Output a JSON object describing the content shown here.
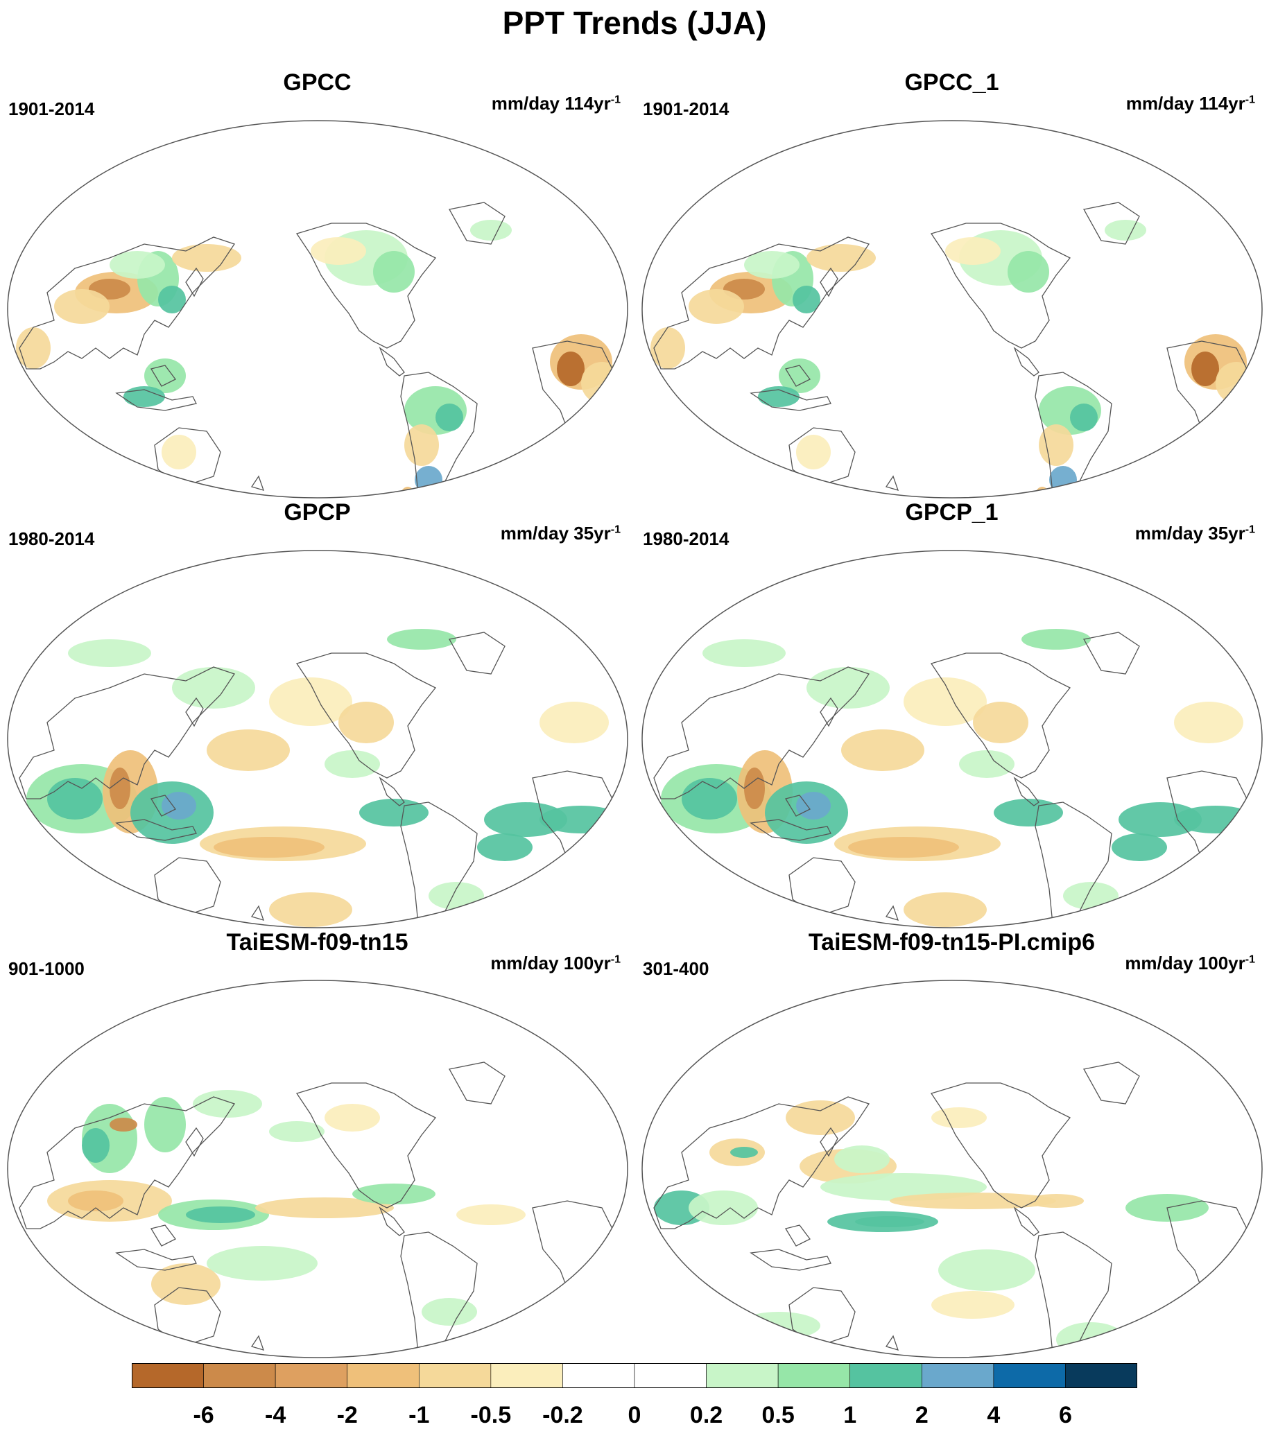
{
  "title": "PPT Trends (JJA)",
  "panels": [
    {
      "title": "GPCC",
      "period": "1901-2014",
      "units": "mm/day 114yr",
      "units_sup": "-1",
      "pattern": "gpcc"
    },
    {
      "title": "GPCC_1",
      "period": "1901-2014",
      "units": "mm/day 114yr",
      "units_sup": "-1",
      "pattern": "gpcc"
    },
    {
      "title": "GPCP",
      "period": "1980-2014",
      "units": "mm/day 35yr",
      "units_sup": "-1",
      "pattern": "gpcp"
    },
    {
      "title": "GPCP_1",
      "period": "1980-2014",
      "units": "mm/day 35yr",
      "units_sup": "-1",
      "pattern": "gpcp"
    },
    {
      "title": "TaiESM-f09-tn15",
      "period": "901-1000",
      "units": "mm/day 100yr",
      "units_sup": "-1",
      "pattern": "model1"
    },
    {
      "title": "TaiESM-f09-tn15-PI.cmip6",
      "period": "301-400",
      "units": "mm/day 100yr",
      "units_sup": "-1",
      "pattern": "model2"
    }
  ],
  "colorbar": {
    "colors": [
      "#b5682a",
      "#cc8a4a",
      "#de a060",
      "#efc07a",
      "#f5d99a",
      "#fbeebc",
      "#ffffff",
      "#ffffff",
      "#c8f5c8",
      "#96e6a8",
      "#55c3a0",
      "#6aa8cc",
      "#0d6aa8",
      "#083a5c"
    ],
    "labels": [
      "-6",
      "-4",
      "-2",
      "-1",
      "-0.5",
      "-0.2",
      "0",
      "0.2",
      "0.5",
      "1",
      "2",
      "4",
      "6"
    ]
  },
  "colors": {
    "brown_dark": "#b5682a",
    "brown": "#cc8a4a",
    "tan": "#efc07a",
    "light_tan": "#f5d99a",
    "pale": "#fbeebc",
    "light_green": "#c8f5c8",
    "green": "#96e6a8",
    "teal": "#55c3a0",
    "blue": "#6aa8cc",
    "coast": "#555555"
  }
}
